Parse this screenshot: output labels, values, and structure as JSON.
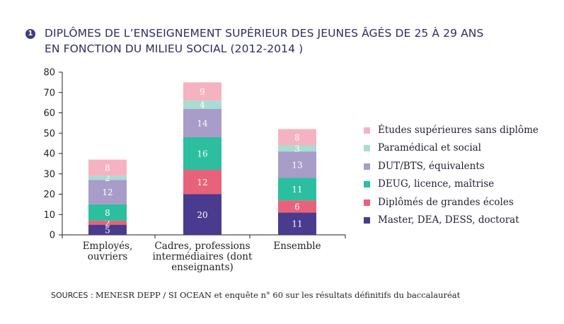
{
  "title": {
    "badge": "1",
    "line1": "DIPLÔMES DE L’ENSEIGNEMENT SUPÉRIEUR DES JEUNES ÂGÉS DE 25 À 29 ANS",
    "line2": "EN FONCTION DU MILIEU SOCIAL (2012-2014 )"
  },
  "source": {
    "key": "SOURCES :",
    "text": "MENESR DEPP / SI OCEAN et enquête n° 60 sur les résultats définitifs du baccalauréat"
  },
  "chart_data": {
    "type": "bar",
    "stacked": true,
    "categories": [
      "Employés,\nouvriers",
      "Cadres, professions\nintermédiaires (dont\nenseignants)",
      "Ensemble"
    ],
    "ylim": [
      0,
      80
    ],
    "yticks": [
      0,
      10,
      20,
      30,
      40,
      50,
      60,
      70,
      80
    ],
    "grid": false,
    "legend_position": "right",
    "series": [
      {
        "name": "Master, DEA, DESS, doctorat",
        "color": "#4a3b8f",
        "values": [
          5,
          20,
          11
        ]
      },
      {
        "name": "Diplômés de grandes écoles",
        "color": "#e8627a",
        "values": [
          2,
          12,
          6
        ]
      },
      {
        "name": "DEUG, licence, maîtrise",
        "color": "#2bbf9f",
        "values": [
          8,
          16,
          11
        ]
      },
      {
        "name": "DUT/BTS, équivalents",
        "color": "#a89cc8",
        "values": [
          12,
          14,
          13
        ]
      },
      {
        "name": "Paramédical et social",
        "color": "#a8ddd2",
        "values": [
          2,
          4,
          3
        ]
      },
      {
        "name": "Études supérieures sans diplôme",
        "color": "#f5b3c1",
        "values": [
          8,
          9,
          8
        ]
      }
    ]
  }
}
